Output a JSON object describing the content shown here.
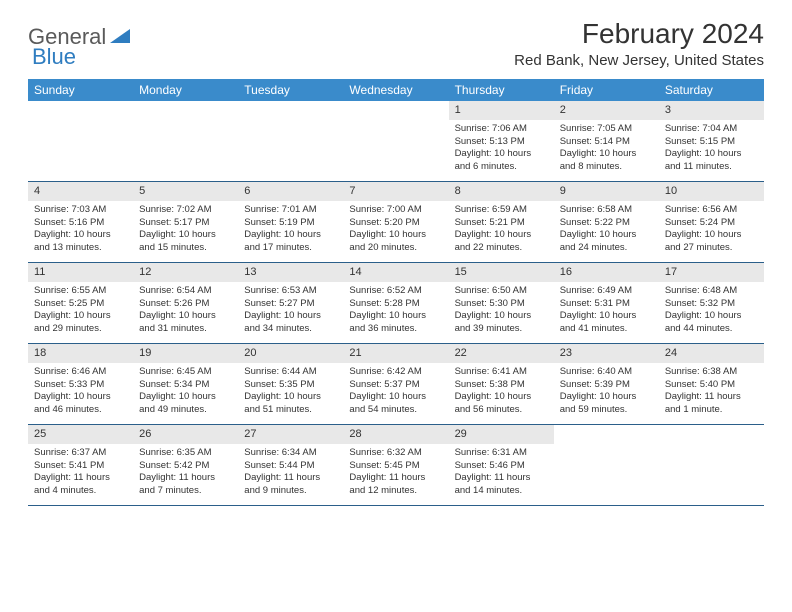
{
  "logo": {
    "general": "General",
    "blue": "Blue"
  },
  "title": "February 2024",
  "location": "Red Bank, New Jersey, United States",
  "colors": {
    "header_bg": "#3a8bcb",
    "header_text": "#ffffff",
    "row_border": "#2b5f8a",
    "daynum_bg": "#e8e8e8",
    "text": "#333333",
    "logo_gray": "#5a5a5a",
    "logo_blue": "#2f7dc0"
  },
  "day_names": [
    "Sunday",
    "Monday",
    "Tuesday",
    "Wednesday",
    "Thursday",
    "Friday",
    "Saturday"
  ],
  "weeks": [
    [
      {
        "empty": true
      },
      {
        "empty": true
      },
      {
        "empty": true
      },
      {
        "empty": true
      },
      {
        "day": "1",
        "sunrise": "Sunrise: 7:06 AM",
        "sunset": "Sunset: 5:13 PM",
        "daylight": "Daylight: 10 hours and 6 minutes."
      },
      {
        "day": "2",
        "sunrise": "Sunrise: 7:05 AM",
        "sunset": "Sunset: 5:14 PM",
        "daylight": "Daylight: 10 hours and 8 minutes."
      },
      {
        "day": "3",
        "sunrise": "Sunrise: 7:04 AM",
        "sunset": "Sunset: 5:15 PM",
        "daylight": "Daylight: 10 hours and 11 minutes."
      }
    ],
    [
      {
        "day": "4",
        "sunrise": "Sunrise: 7:03 AM",
        "sunset": "Sunset: 5:16 PM",
        "daylight": "Daylight: 10 hours and 13 minutes."
      },
      {
        "day": "5",
        "sunrise": "Sunrise: 7:02 AM",
        "sunset": "Sunset: 5:17 PM",
        "daylight": "Daylight: 10 hours and 15 minutes."
      },
      {
        "day": "6",
        "sunrise": "Sunrise: 7:01 AM",
        "sunset": "Sunset: 5:19 PM",
        "daylight": "Daylight: 10 hours and 17 minutes."
      },
      {
        "day": "7",
        "sunrise": "Sunrise: 7:00 AM",
        "sunset": "Sunset: 5:20 PM",
        "daylight": "Daylight: 10 hours and 20 minutes."
      },
      {
        "day": "8",
        "sunrise": "Sunrise: 6:59 AM",
        "sunset": "Sunset: 5:21 PM",
        "daylight": "Daylight: 10 hours and 22 minutes."
      },
      {
        "day": "9",
        "sunrise": "Sunrise: 6:58 AM",
        "sunset": "Sunset: 5:22 PM",
        "daylight": "Daylight: 10 hours and 24 minutes."
      },
      {
        "day": "10",
        "sunrise": "Sunrise: 6:56 AM",
        "sunset": "Sunset: 5:24 PM",
        "daylight": "Daylight: 10 hours and 27 minutes."
      }
    ],
    [
      {
        "day": "11",
        "sunrise": "Sunrise: 6:55 AM",
        "sunset": "Sunset: 5:25 PM",
        "daylight": "Daylight: 10 hours and 29 minutes."
      },
      {
        "day": "12",
        "sunrise": "Sunrise: 6:54 AM",
        "sunset": "Sunset: 5:26 PM",
        "daylight": "Daylight: 10 hours and 31 minutes."
      },
      {
        "day": "13",
        "sunrise": "Sunrise: 6:53 AM",
        "sunset": "Sunset: 5:27 PM",
        "daylight": "Daylight: 10 hours and 34 minutes."
      },
      {
        "day": "14",
        "sunrise": "Sunrise: 6:52 AM",
        "sunset": "Sunset: 5:28 PM",
        "daylight": "Daylight: 10 hours and 36 minutes."
      },
      {
        "day": "15",
        "sunrise": "Sunrise: 6:50 AM",
        "sunset": "Sunset: 5:30 PM",
        "daylight": "Daylight: 10 hours and 39 minutes."
      },
      {
        "day": "16",
        "sunrise": "Sunrise: 6:49 AM",
        "sunset": "Sunset: 5:31 PM",
        "daylight": "Daylight: 10 hours and 41 minutes."
      },
      {
        "day": "17",
        "sunrise": "Sunrise: 6:48 AM",
        "sunset": "Sunset: 5:32 PM",
        "daylight": "Daylight: 10 hours and 44 minutes."
      }
    ],
    [
      {
        "day": "18",
        "sunrise": "Sunrise: 6:46 AM",
        "sunset": "Sunset: 5:33 PM",
        "daylight": "Daylight: 10 hours and 46 minutes."
      },
      {
        "day": "19",
        "sunrise": "Sunrise: 6:45 AM",
        "sunset": "Sunset: 5:34 PM",
        "daylight": "Daylight: 10 hours and 49 minutes."
      },
      {
        "day": "20",
        "sunrise": "Sunrise: 6:44 AM",
        "sunset": "Sunset: 5:35 PM",
        "daylight": "Daylight: 10 hours and 51 minutes."
      },
      {
        "day": "21",
        "sunrise": "Sunrise: 6:42 AM",
        "sunset": "Sunset: 5:37 PM",
        "daylight": "Daylight: 10 hours and 54 minutes."
      },
      {
        "day": "22",
        "sunrise": "Sunrise: 6:41 AM",
        "sunset": "Sunset: 5:38 PM",
        "daylight": "Daylight: 10 hours and 56 minutes."
      },
      {
        "day": "23",
        "sunrise": "Sunrise: 6:40 AM",
        "sunset": "Sunset: 5:39 PM",
        "daylight": "Daylight: 10 hours and 59 minutes."
      },
      {
        "day": "24",
        "sunrise": "Sunrise: 6:38 AM",
        "sunset": "Sunset: 5:40 PM",
        "daylight": "Daylight: 11 hours and 1 minute."
      }
    ],
    [
      {
        "day": "25",
        "sunrise": "Sunrise: 6:37 AM",
        "sunset": "Sunset: 5:41 PM",
        "daylight": "Daylight: 11 hours and 4 minutes."
      },
      {
        "day": "26",
        "sunrise": "Sunrise: 6:35 AM",
        "sunset": "Sunset: 5:42 PM",
        "daylight": "Daylight: 11 hours and 7 minutes."
      },
      {
        "day": "27",
        "sunrise": "Sunrise: 6:34 AM",
        "sunset": "Sunset: 5:44 PM",
        "daylight": "Daylight: 11 hours and 9 minutes."
      },
      {
        "day": "28",
        "sunrise": "Sunrise: 6:32 AM",
        "sunset": "Sunset: 5:45 PM",
        "daylight": "Daylight: 11 hours and 12 minutes."
      },
      {
        "day": "29",
        "sunrise": "Sunrise: 6:31 AM",
        "sunset": "Sunset: 5:46 PM",
        "daylight": "Daylight: 11 hours and 14 minutes."
      },
      {
        "empty": true
      },
      {
        "empty": true
      }
    ]
  ]
}
